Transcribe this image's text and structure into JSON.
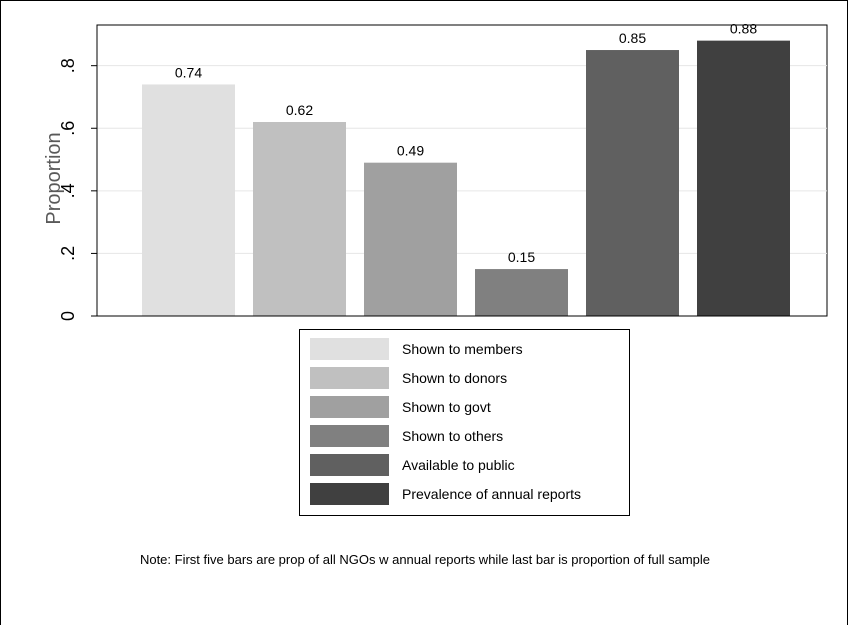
{
  "chart_data": {
    "type": "bar",
    "ylabel": "Proportion",
    "ylim": [
      0,
      0.93
    ],
    "yticks": [
      {
        "value": 0,
        "label": "0"
      },
      {
        "value": 0.2,
        "label": ".2"
      },
      {
        "value": 0.4,
        "label": ".4"
      },
      {
        "value": 0.6,
        "label": ".6"
      },
      {
        "value": 0.8,
        "label": ".8"
      }
    ],
    "grid": true,
    "legend_position": "bottom",
    "series": [
      {
        "name": "Shown to members",
        "value": 0.74,
        "label": "0.74",
        "color": "#e0e0e0"
      },
      {
        "name": "Shown to donors",
        "value": 0.62,
        "label": "0.62",
        "color": "#c0c0c0"
      },
      {
        "name": "Shown to govt",
        "value": 0.49,
        "label": "0.49",
        "color": "#a0a0a0"
      },
      {
        "name": "Shown to others",
        "value": 0.15,
        "label": "0.15",
        "color": "#808080"
      },
      {
        "name": "Available to public",
        "value": 0.85,
        "label": "0.85",
        "color": "#606060"
      },
      {
        "name": "Prevalence of annual reports",
        "value": 0.88,
        "label": "0.88",
        "color": "#404040"
      }
    ]
  },
  "note": "Note: First five bars are prop of all NGOs w annual reports while last bar is proportion of full sample"
}
